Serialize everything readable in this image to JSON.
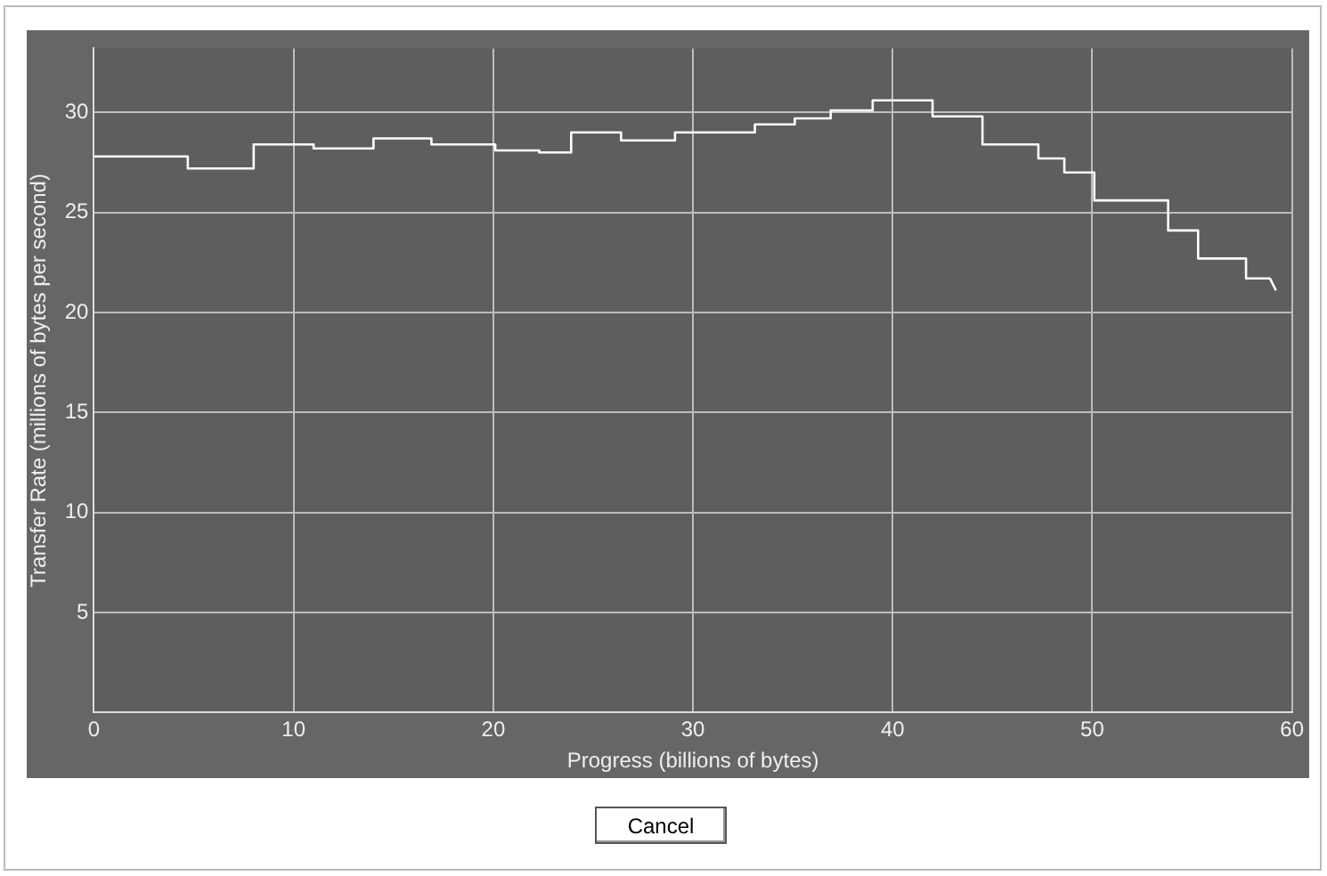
{
  "chart_data": {
    "type": "line",
    "xlabel": "Progress (billions of bytes)",
    "ylabel": "Transfer Rate (millions of bytes per second)",
    "series": [
      {
        "color": "#ffffff",
        "x": [
          0,
          4.7,
          4.7,
          8.0,
          8.0,
          11.0,
          11.0,
          14.0,
          14.0,
          16.9,
          16.9,
          20.1,
          20.1,
          22.3,
          22.3,
          23.9,
          23.9,
          26.4,
          26.4,
          29.1,
          29.1,
          33.1,
          33.1,
          35.1,
          35.1,
          36.9,
          36.9,
          39.0,
          39.0,
          42.0,
          42.0,
          44.5,
          44.5,
          47.3,
          47.3,
          48.6,
          48.6,
          50.1,
          50.1,
          53.8,
          53.8,
          55.3,
          55.3,
          57.7,
          57.7,
          58.9,
          59.2
        ],
        "values": [
          27.8,
          27.8,
          27.2,
          27.2,
          28.4,
          28.4,
          28.2,
          28.2,
          28.7,
          28.7,
          28.4,
          28.4,
          28.1,
          28.1,
          28.0,
          28.0,
          29.0,
          29.0,
          28.6,
          28.6,
          29.0,
          29.0,
          29.4,
          29.4,
          29.7,
          29.7,
          30.1,
          30.1,
          30.6,
          30.6,
          29.8,
          29.8,
          28.4,
          28.4,
          27.7,
          27.7,
          27.0,
          27.0,
          25.6,
          25.6,
          24.1,
          24.1,
          22.7,
          22.7,
          21.7,
          21.7,
          21.1
        ]
      }
    ],
    "xlim": [
      0,
      60
    ],
    "xticks": [
      0,
      10,
      20,
      30,
      40,
      50,
      60
    ],
    "ylim": [
      0,
      33.2
    ],
    "yticks": [
      {
        "value": 0,
        "label": null
      },
      5,
      10,
      15,
      20,
      25,
      30
    ],
    "grid": true,
    "legend": false,
    "marker": "none",
    "line_style": "solid",
    "annotations": [
      "Cancel"
    ]
  }
}
